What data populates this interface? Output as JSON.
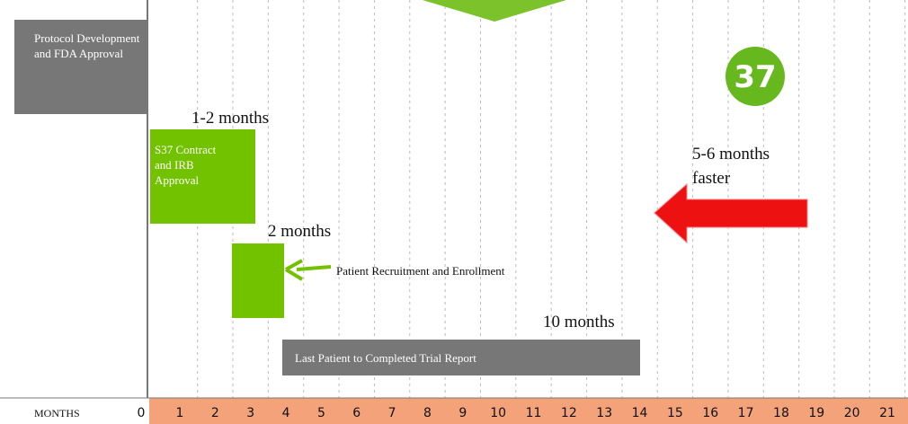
{
  "boxes": [
    {
      "label": "Protocol Development and FDA Approval"
    },
    {
      "label": "S37 Contract and IRB Approval",
      "duration": "1-2 months"
    },
    {
      "label": "Patient Recruitment and Enrollment",
      "duration": "2 months"
    },
    {
      "label": "Last Patient to Completed Trial Report",
      "duration": "10 months"
    }
  ],
  "badge": {
    "label": "37",
    "note": "5-6 months faster"
  },
  "axis": {
    "label": "MONTHS",
    "ticks": [
      0,
      1,
      2,
      3,
      4,
      5,
      6,
      7,
      8,
      9,
      10,
      11,
      12,
      13,
      14,
      15,
      16,
      17,
      18,
      19,
      20,
      21
    ]
  }
}
